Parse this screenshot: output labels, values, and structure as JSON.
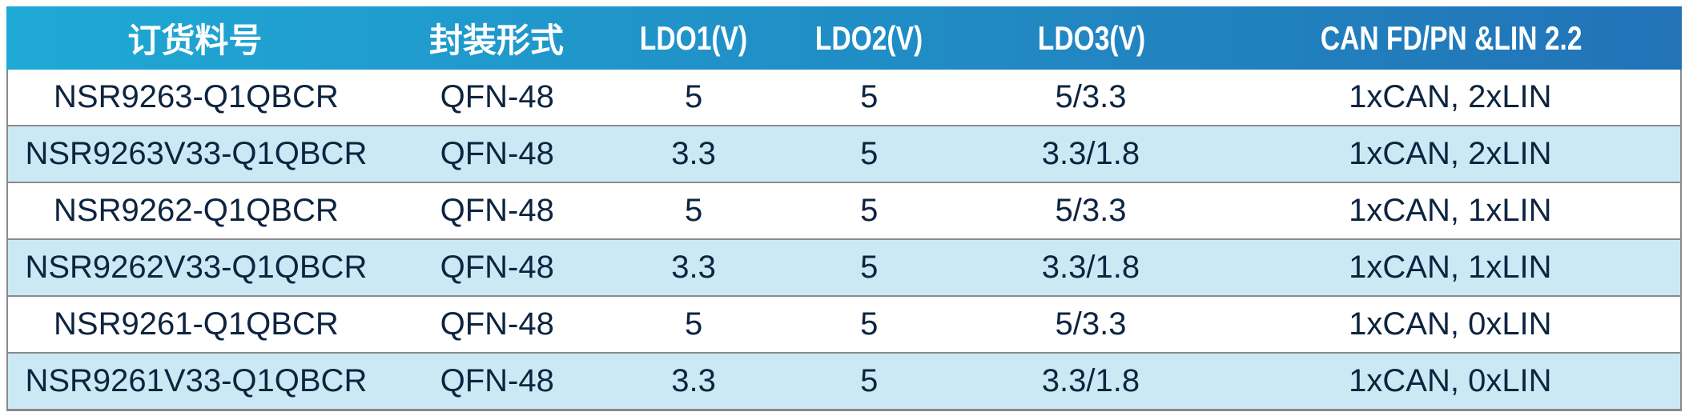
{
  "table": {
    "columns": [
      {
        "label": "订货料号"
      },
      {
        "label": "封装形式"
      },
      {
        "label": "LDO1(V)"
      },
      {
        "label": "LDO2(V)"
      },
      {
        "label": "LDO3(V)"
      },
      {
        "label": "CAN FD/PN &LIN 2.2"
      }
    ],
    "rows": [
      [
        "NSR9263-Q1QBCR",
        "QFN-48",
        "5",
        "5",
        "5/3.3",
        "1xCAN, 2xLIN"
      ],
      [
        "NSR9263V33-Q1QBCR",
        "QFN-48",
        "3.3",
        "5",
        "3.3/1.8",
        "1xCAN, 2xLIN"
      ],
      [
        "NSR9262-Q1QBCR",
        "QFN-48",
        "5",
        "5",
        "5/3.3",
        "1xCAN, 1xLIN"
      ],
      [
        "NSR9262V33-Q1QBCR",
        "QFN-48",
        "3.3",
        "5",
        "3.3/1.8",
        "1xCAN, 1xLIN"
      ],
      [
        "NSR9261-Q1QBCR",
        "QFN-48",
        "5",
        "5",
        "5/3.3",
        "1xCAN, 0xLIN"
      ],
      [
        "NSR9261V33-Q1QBCR",
        "QFN-48",
        "3.3",
        "5",
        "3.3/1.8",
        "1xCAN, 0xLIN"
      ]
    ]
  },
  "chart_data": {
    "type": "table",
    "title": "",
    "columns": [
      "订货料号",
      "封装形式",
      "LDO1(V)",
      "LDO2(V)",
      "LDO3(V)",
      "CAN FD/PN &LIN 2.2"
    ],
    "rows": [
      [
        "NSR9263-Q1QBCR",
        "QFN-48",
        "5",
        "5",
        "5/3.3",
        "1xCAN, 2xLIN"
      ],
      [
        "NSR9263V33-Q1QBCR",
        "QFN-48",
        "3.3",
        "5",
        "3.3/1.8",
        "1xCAN, 2xLIN"
      ],
      [
        "NSR9262-Q1QBCR",
        "QFN-48",
        "5",
        "5",
        "5/3.3",
        "1xCAN, 1xLIN"
      ],
      [
        "NSR9262V33-Q1QBCR",
        "QFN-48",
        "3.3",
        "5",
        "3.3/1.8",
        "1xCAN, 1xLIN"
      ],
      [
        "NSR9261-Q1QBCR",
        "QFN-48",
        "5",
        "5",
        "5/3.3",
        "1xCAN, 0xLIN"
      ],
      [
        "NSR9261V33-Q1QBCR",
        "QFN-48",
        "3.3",
        "5",
        "3.3/1.8",
        "1xCAN, 0xLIN"
      ]
    ]
  },
  "colors": {
    "header_gradient_left": "#1FA9D5",
    "header_gradient_right": "#2273B7",
    "header_text": "#FFFFFF",
    "row_base": "#FFFFFF",
    "row_alt": "#CBE9F4",
    "text": "#0D2440",
    "border": "#8A8A8A"
  }
}
